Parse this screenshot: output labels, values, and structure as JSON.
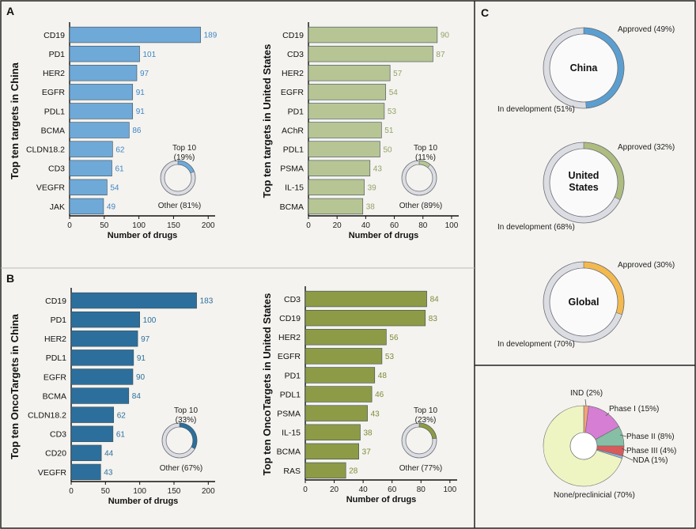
{
  "panels": {
    "A": "A",
    "B": "B",
    "C": "C"
  },
  "chart_data": [
    {
      "type": "bar",
      "orientation": "horizontal",
      "id": "a1",
      "ylabel": "Top ten targets in China",
      "xlabel": "Number of drugs",
      "categories": [
        "CD19",
        "PD1",
        "HER2",
        "EGFR",
        "PDL1",
        "BCMA",
        "CLDN18.2",
        "CD3",
        "VEGFR",
        "JAK"
      ],
      "values": [
        189,
        101,
        97,
        91,
        91,
        86,
        62,
        61,
        54,
        49
      ],
      "xlim": [
        0,
        210
      ],
      "xticks": [
        "0",
        "50",
        "100",
        "150",
        "200"
      ],
      "bar_color": "#6fa9d8",
      "label_color": "#3f86c6",
      "donut": {
        "top_label": "Top 10",
        "top_pct": "(19%)",
        "other_label": "Other (81%)",
        "fraction": 0.19
      }
    },
    {
      "type": "bar",
      "orientation": "horizontal",
      "id": "a2",
      "ylabel": "Top ten targets in United States",
      "xlabel": "Number of drugs",
      "categories": [
        "CD19",
        "CD3",
        "HER2",
        "EGFR",
        "PD1",
        "AChR",
        "PDL1",
        "PSMA",
        "IL-15",
        "BCMA"
      ],
      "values": [
        90,
        87,
        57,
        54,
        53,
        51,
        50,
        43,
        39,
        38
      ],
      "xlim": [
        0,
        105
      ],
      "xticks": [
        "0",
        "20",
        "40",
        "60",
        "80",
        "100"
      ],
      "bar_color": "#b7c594",
      "label_color": "#94a268",
      "donut": {
        "top_label": "Top 10",
        "top_pct": "(11%)",
        "other_label": "Other (89%)",
        "fraction": 0.11
      }
    },
    {
      "type": "bar",
      "orientation": "horizontal",
      "id": "b1",
      "ylabel": "Top ten OncoTargets in China",
      "xlabel": "Number of drugs",
      "categories": [
        "CD19",
        "PD1",
        "HER2",
        "PDL1",
        "EGFR",
        "BCMA",
        "CLDN18.2",
        "CD3",
        "CD20",
        "VEGFR"
      ],
      "values": [
        183,
        100,
        97,
        91,
        90,
        84,
        62,
        61,
        44,
        43
      ],
      "xlim": [
        0,
        210
      ],
      "xticks": [
        "0",
        "50",
        "100",
        "150",
        "200"
      ],
      "bar_color": "#2c6f9c",
      "label_color": "#2c6f9c",
      "donut": {
        "top_label": "Top 10",
        "top_pct": "(33%)",
        "other_label": "Other (67%)",
        "fraction": 0.33
      }
    },
    {
      "type": "bar",
      "orientation": "horizontal",
      "id": "b2",
      "ylabel": "Top ten OncoTargets in United States",
      "xlabel": "Number of drugs",
      "categories": [
        "CD3",
        "CD19",
        "HER2",
        "EGFR",
        "PD1",
        "PDL1",
        "PSMA",
        "IL-15",
        "BCMA",
        "RAS"
      ],
      "values": [
        84,
        83,
        56,
        53,
        48,
        46,
        43,
        38,
        37,
        28
      ],
      "xlim": [
        0,
        105
      ],
      "xticks": [
        "0",
        "20",
        "40",
        "60",
        "80",
        "100"
      ],
      "bar_color": "#8e9b46",
      "label_color": "#7e8b3a",
      "donut": {
        "top_label": "Top 10",
        "top_pct": "(23%)",
        "other_label": "Other (77%)",
        "fraction": 0.23
      }
    },
    {
      "type": "pie",
      "variant": "donut",
      "id": "c1",
      "center": "China",
      "fraction": 0.49,
      "labels": [
        "Approved (49%)",
        "In development (51%)"
      ],
      "color": "#5b9fd1"
    },
    {
      "type": "pie",
      "variant": "donut",
      "id": "c2",
      "center_lines": [
        "United",
        "States"
      ],
      "fraction": 0.32,
      "labels": [
        "Approved (32%)",
        "In development (68%)"
      ],
      "color": "#aebc80"
    },
    {
      "type": "pie",
      "variant": "donut",
      "id": "c3",
      "center": "Global",
      "fraction": 0.3,
      "labels": [
        "Approved (30%)",
        "In development (70%)"
      ],
      "color": "#f4b94e"
    },
    {
      "type": "pie",
      "variant": "donut",
      "id": "c4",
      "slices": [
        {
          "label": "IND (2%)",
          "value": 2,
          "color": "#f3a37a"
        },
        {
          "label": "Phase I (15%)",
          "value": 15,
          "color": "#d57ed4"
        },
        {
          "label": "Phase II (8%)",
          "value": 8,
          "color": "#86bfa5"
        },
        {
          "label": "Phase III (4%)",
          "value": 4,
          "color": "#d95a5a"
        },
        {
          "label": "NDA (1%)",
          "value": 1,
          "color": "#8fb5e8"
        },
        {
          "label": "None/preclinicial (70%)",
          "value": 70,
          "color": "#eef5c3"
        }
      ]
    }
  ]
}
